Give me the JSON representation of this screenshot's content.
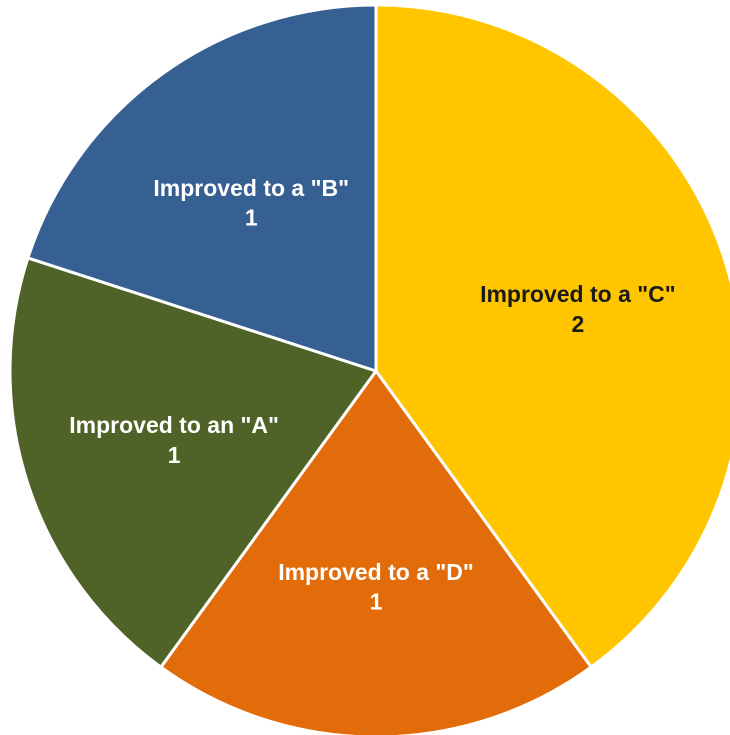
{
  "chart_data": {
    "type": "pie",
    "title": "",
    "categories": [
      "Improved to a \"C\"",
      "Improved to a \"D\"",
      "Improved to an \"A\"",
      "Improved to a \"B\""
    ],
    "values": [
      2,
      1,
      1,
      1
    ],
    "colors": [
      "#FFC600",
      "#E36C0A",
      "#4F6228",
      "#376092"
    ],
    "label_colors": [
      "#1a1a1a",
      "#ffffff",
      "#ffffff",
      "#ffffff"
    ],
    "start_angle_deg": 0,
    "direction": "clockwise",
    "legend": "none",
    "data_labels": "category name and value inside slices"
  }
}
